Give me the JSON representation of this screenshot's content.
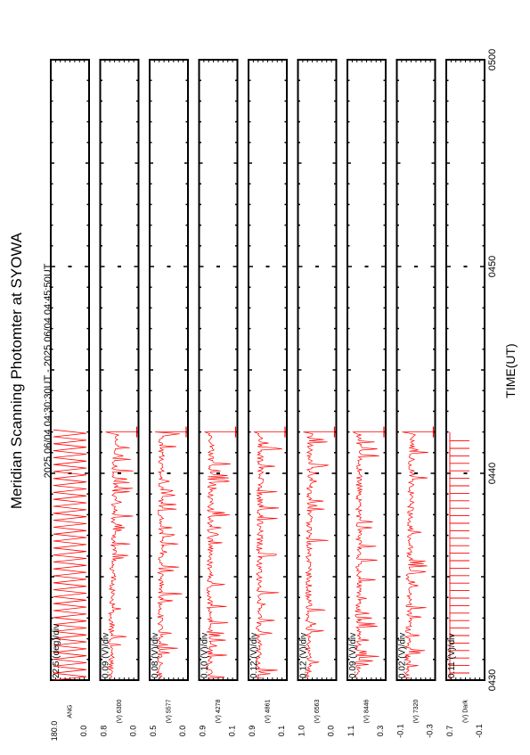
{
  "chart_data": {
    "type": "line",
    "title": "Meridian Scanning Photomter at SYOWA",
    "subtitle": "2025 06/04 04:30:30UT - 2025 06/04 04:45:50UT",
    "xlabel": "TIME(UT)",
    "x_range": [
      "0430",
      "0500"
    ],
    "x_ticks": [
      "0430",
      "0440",
      "0450",
      "0500"
    ],
    "series_color": "#ff0000",
    "panels": [
      {
        "scale": "22.5 (deg)/div",
        "channel": "ANG",
        "y_top": "180.0",
        "y_bottom": "0.0",
        "signal": "scan-angle"
      },
      {
        "scale": "0.09 (V)/div",
        "channel": "(V)\n6300",
        "y_top": "0.8",
        "y_bottom": "0.0",
        "signal": "noisy-declining"
      },
      {
        "scale": "0.08 (V)/div",
        "channel": "(V)\n5577",
        "y_top": "0.5",
        "y_bottom": "0.0",
        "signal": "noisy"
      },
      {
        "scale": "0.10 (V)/div",
        "channel": "(V)\n4278",
        "y_top": "0.9",
        "y_bottom": "0.1",
        "signal": "noisy"
      },
      {
        "scale": "0.12 (V)/div",
        "channel": "(V)\n4861",
        "y_top": "0.9",
        "y_bottom": "0.1",
        "signal": "noisy"
      },
      {
        "scale": "0.12 (V)/div",
        "channel": "(V)\n6563",
        "y_top": "1.0",
        "y_bottom": "0.0",
        "signal": "noisy"
      },
      {
        "scale": "0.09 (V)/div",
        "channel": "(V)\n8446",
        "y_top": "1.1",
        "y_bottom": "0.3",
        "signal": "noisy"
      },
      {
        "scale": "0.02 (V)/div",
        "channel": "(V)\n7320",
        "y_top": "-0.1",
        "y_bottom": "-0.3",
        "signal": "noisy-declining"
      },
      {
        "scale": "0.11 (V)/div",
        "channel": "(V)\nDark",
        "y_top": "0.7",
        "y_bottom": "-0.1",
        "signal": "spikes"
      }
    ],
    "data_end_time": "0442",
    "grid": false
  }
}
